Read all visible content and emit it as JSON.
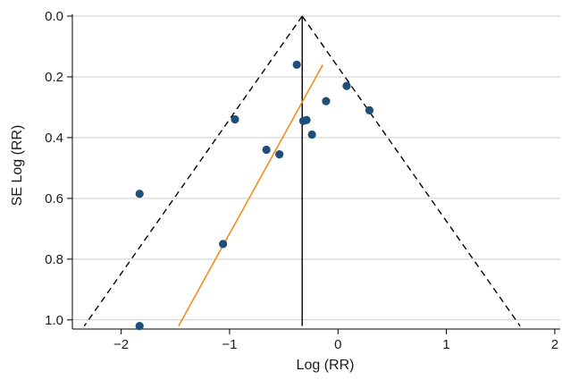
{
  "chart_data": {
    "type": "scatter",
    "title": "",
    "xlabel": "Log (RR)",
    "ylabel": "SE Log (RR)",
    "xlim": [
      -2.45,
      2.05
    ],
    "ylim": [
      0.0,
      1.03
    ],
    "y_inverted": true,
    "grid": true,
    "x_ticks": [
      -2,
      -1,
      0,
      1,
      2
    ],
    "x_tick_labels": [
      "−2",
      "−1",
      "0",
      "1",
      "2"
    ],
    "y_ticks": [
      0.0,
      0.2,
      0.4,
      0.6,
      0.8,
      1.0
    ],
    "y_tick_labels": [
      "0.0",
      "0.2",
      "0.4",
      "0.6",
      "0.8",
      "1.0"
    ],
    "points": [
      {
        "x": -0.38,
        "y": 0.16
      },
      {
        "x": 0.08,
        "y": 0.23
      },
      {
        "x": -0.11,
        "y": 0.28
      },
      {
        "x": 0.29,
        "y": 0.31
      },
      {
        "x": -0.95,
        "y": 0.34
      },
      {
        "x": -0.32,
        "y": 0.345
      },
      {
        "x": -0.29,
        "y": 0.342
      },
      {
        "x": -0.24,
        "y": 0.39
      },
      {
        "x": -0.66,
        "y": 0.44
      },
      {
        "x": -0.54,
        "y": 0.455
      },
      {
        "x": -1.83,
        "y": 0.585
      },
      {
        "x": -1.06,
        "y": 0.75
      },
      {
        "x": -1.83,
        "y": 1.02
      }
    ],
    "pooled_estimate": -0.33,
    "funnel_lines": {
      "apex": {
        "x": -0.33,
        "y": 0.0
      },
      "left_end": {
        "x": -2.34,
        "y": 1.02
      },
      "right_end": {
        "x": 1.68,
        "y": 1.02
      }
    },
    "regression_line": {
      "start": {
        "x": -1.47,
        "y": 1.02
      },
      "end": {
        "x": -0.14,
        "y": 0.16
      }
    },
    "colors": {
      "points": "#1f4e79",
      "regression": "#f28e1c",
      "funnel": "#000000",
      "grid": "#cccccc",
      "axis": "#000000"
    }
  }
}
